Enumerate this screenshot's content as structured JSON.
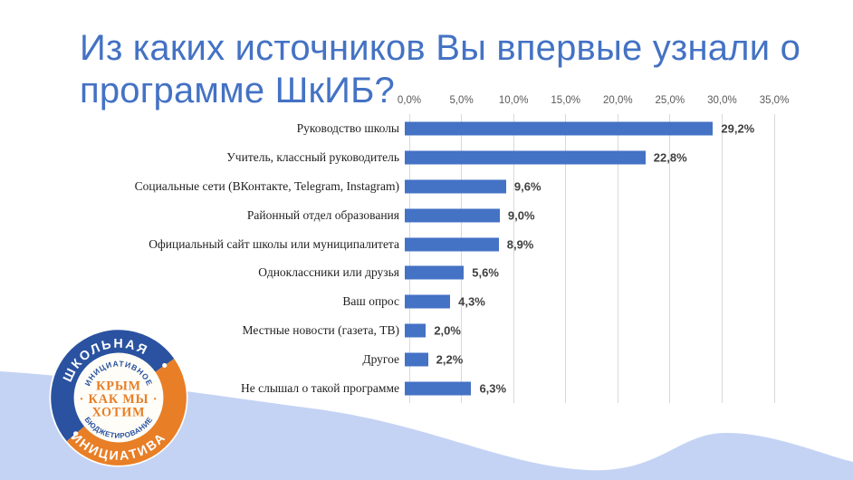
{
  "slide": {
    "title_line1": "Из каких источников Вы впервые узнали о",
    "title_line2": "программе ШкИБ?"
  },
  "chart_data": {
    "type": "bar",
    "orientation": "horizontal",
    "title": "Из каких источников Вы впервые узнали о программе ШкИБ?",
    "categories": [
      "Руководство школы",
      "Учитель, классный руководитель",
      "Социальные сети (ВКонтакте, Telegram, Instagram)",
      "Районный отдел образования",
      "Официальный сайт школы или муниципалитета",
      "Одноклассники или друзья",
      "Ваш опрос",
      "Местные новости (газета, ТВ)",
      "Другое",
      "Не слышал о такой программе"
    ],
    "values": [
      29.2,
      22.8,
      9.6,
      9.0,
      8.9,
      5.6,
      4.3,
      2.0,
      2.2,
      6.3
    ],
    "value_labels": [
      "29,2%",
      "22,8%",
      "9,6%",
      "9,0%",
      "8,9%",
      "5,6%",
      "4,3%",
      "2,0%",
      "2,2%",
      "6,3%"
    ],
    "x_ticks": [
      "0,0%",
      "5,0%",
      "10,0%",
      "15,0%",
      "20,0%",
      "25,0%",
      "30,0%",
      "35,0%"
    ],
    "xlim": [
      0,
      35
    ],
    "grid": true,
    "legend": false,
    "bar_color": "#4472C4",
    "gridline_color": "#D9D9D9"
  },
  "logo": {
    "ring_top": "ШКОЛЬНАЯ",
    "ring_bottom": "ИНИЦИАТИВА",
    "inner_top": "ИНИЦИАТИВНОЕ",
    "inner_bottom": "БЮДЖЕТИРОВАНИЕ",
    "center_line1": "КРЫМ",
    "center_line2": "· КАК МЫ ·",
    "center_line3": "ХОТИМ",
    "blue": "#2A52A0",
    "orange": "#E87E26"
  },
  "colors": {
    "title": "#4472C4",
    "wave": "#C4D3F4"
  }
}
